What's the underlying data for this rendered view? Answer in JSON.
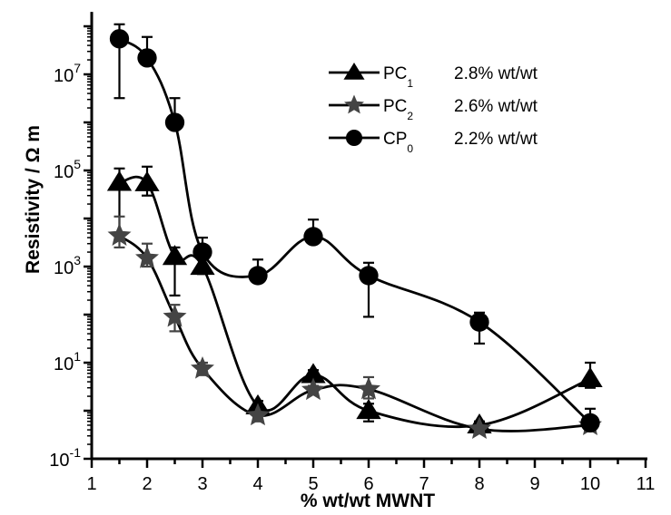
{
  "chart_data": {
    "type": "line",
    "title": "",
    "xlabel": "% wt/wt MWNT",
    "ylabel": "Resistivity / Ω m",
    "xlim": [
      1,
      11
    ],
    "ylim_log10": [
      -1,
      8.3
    ],
    "yscale": "log",
    "x_ticks": [
      1,
      2,
      3,
      4,
      5,
      6,
      7,
      8,
      9,
      10,
      11
    ],
    "y_tick_labels": [
      {
        "base": "10",
        "exp": "-1",
        "log": -1
      },
      {
        "base": "10",
        "exp": "1",
        "log": 1
      },
      {
        "base": "10",
        "exp": "3",
        "log": 3
      },
      {
        "base": "10",
        "exp": "5",
        "log": 5
      },
      {
        "base": "10",
        "exp": "7",
        "log": 7
      }
    ],
    "grid": false,
    "legend_position": "top-right",
    "series": [
      {
        "name": "PC1",
        "label_main": "PC",
        "label_sub": "1",
        "note": "2.8% wt/wt",
        "marker": "triangle",
        "color": "#000000",
        "x": [
          1.5,
          2,
          2.5,
          3,
          4,
          5,
          6,
          8,
          10
        ],
        "y": [
          56000,
          55000,
          1600,
          1000,
          1.25,
          5.6,
          1.0,
          0.5,
          4.6
        ],
        "err_upper": [
          110000,
          120000,
          2500,
          1500,
          1.6,
          7,
          1.4,
          0.6,
          10
        ],
        "err_lower": [
          5000,
          30000,
          250,
          700,
          0.9,
          3,
          0.6,
          0.4,
          3
        ]
      },
      {
        "name": "PC2",
        "label_main": "PC",
        "label_sub": "2",
        "note": "2.6% wt/wt",
        "marker": "star",
        "color": "#444444",
        "x": [
          1.5,
          2,
          2.5,
          3,
          4,
          5,
          6,
          8,
          10
        ],
        "y": [
          4400,
          1500,
          90,
          7.5,
          0.8,
          2.7,
          2.8,
          0.42,
          0.5
        ],
        "err_upper": [
          11000,
          3000,
          160,
          10,
          1.0,
          3.3,
          5,
          0.5,
          0.6
        ],
        "err_lower": [
          2500,
          1000,
          45,
          5.5,
          0.6,
          2.2,
          1.8,
          0.35,
          0.4
        ]
      },
      {
        "name": "CP0",
        "label_main": "CP",
        "label_sub": "0",
        "note": "2.2% wt/wt",
        "marker": "circle",
        "color": "#000000",
        "x": [
          1.5,
          2,
          2.5,
          3,
          4,
          5,
          6,
          8,
          10
        ],
        "y": [
          55000000,
          22000000,
          1000000,
          2000,
          650,
          4200,
          650,
          70,
          0.56
        ],
        "err_upper": [
          110000000,
          60000000,
          3200000,
          4000,
          1400,
          9500,
          1200,
          110,
          1.1
        ],
        "err_lower": [
          3200000,
          22000000,
          1000000,
          2000,
          650,
          4200,
          90,
          25,
          0.56
        ]
      }
    ]
  }
}
